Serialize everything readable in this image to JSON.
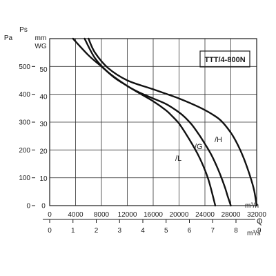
{
  "chart_data": {
    "type": "line",
    "model_label": "TTT/4-800N",
    "left_axis": {
      "header_top": "Ps",
      "header_pa": "Pa",
      "header_mm": "mm",
      "header_wg": "WG",
      "pa_ticks": [
        "0",
        "100",
        "200",
        "300",
        "400",
        "500"
      ],
      "wg_ticks": [
        "0",
        "10",
        "20",
        "30",
        "40",
        "50"
      ],
      "pa_range": [
        0,
        600
      ],
      "wg_range": [
        0,
        61.2
      ]
    },
    "x_axis": {
      "q_label": "Q",
      "m3h_unit": "m³/h",
      "m3s_unit": "m³/s",
      "m3h_ticks": [
        "0",
        "4000",
        "8000",
        "12000",
        "16000",
        "20000",
        "24000",
        "28000",
        "32000"
      ],
      "m3s_ticks": [
        "0",
        "1",
        "2",
        "3",
        "4",
        "5",
        "6",
        "7",
        "8",
        "9"
      ],
      "m3h_range": [
        0,
        32000
      ]
    },
    "grid": true,
    "series": [
      {
        "name": "/L",
        "x": [
          3600,
          6000,
          8000,
          10000,
          12000,
          14000,
          16000,
          18000,
          19000,
          20000,
          21000,
          22000,
          23000,
          24000,
          24500,
          25000,
          25600
        ],
        "y": [
          600,
          540,
          500,
          460,
          430,
          402,
          375,
          342,
          320,
          295,
          260,
          222,
          180,
          128,
          96,
          55,
          0
        ]
      },
      {
        "name": "/G",
        "x": [
          5400,
          7000,
          9000,
          12000,
          14000,
          16000,
          18000,
          20000,
          21000,
          22000,
          23000,
          24000,
          25000,
          26000,
          27000,
          27500,
          28000
        ],
        "y": [
          600,
          530,
          480,
          430,
          405,
          385,
          365,
          335,
          315,
          290,
          258,
          222,
          182,
          132,
          72,
          35,
          0
        ]
      },
      {
        "name": "/H",
        "x": [
          6000,
          7000,
          9000,
          12000,
          16000,
          20000,
          23000,
          25000,
          26500,
          28000,
          29000,
          30000,
          31000,
          31600,
          32000
        ],
        "y": [
          600,
          550,
          495,
          450,
          418,
          385,
          355,
          330,
          305,
          262,
          222,
          170,
          105,
          55,
          0
        ]
      }
    ]
  }
}
